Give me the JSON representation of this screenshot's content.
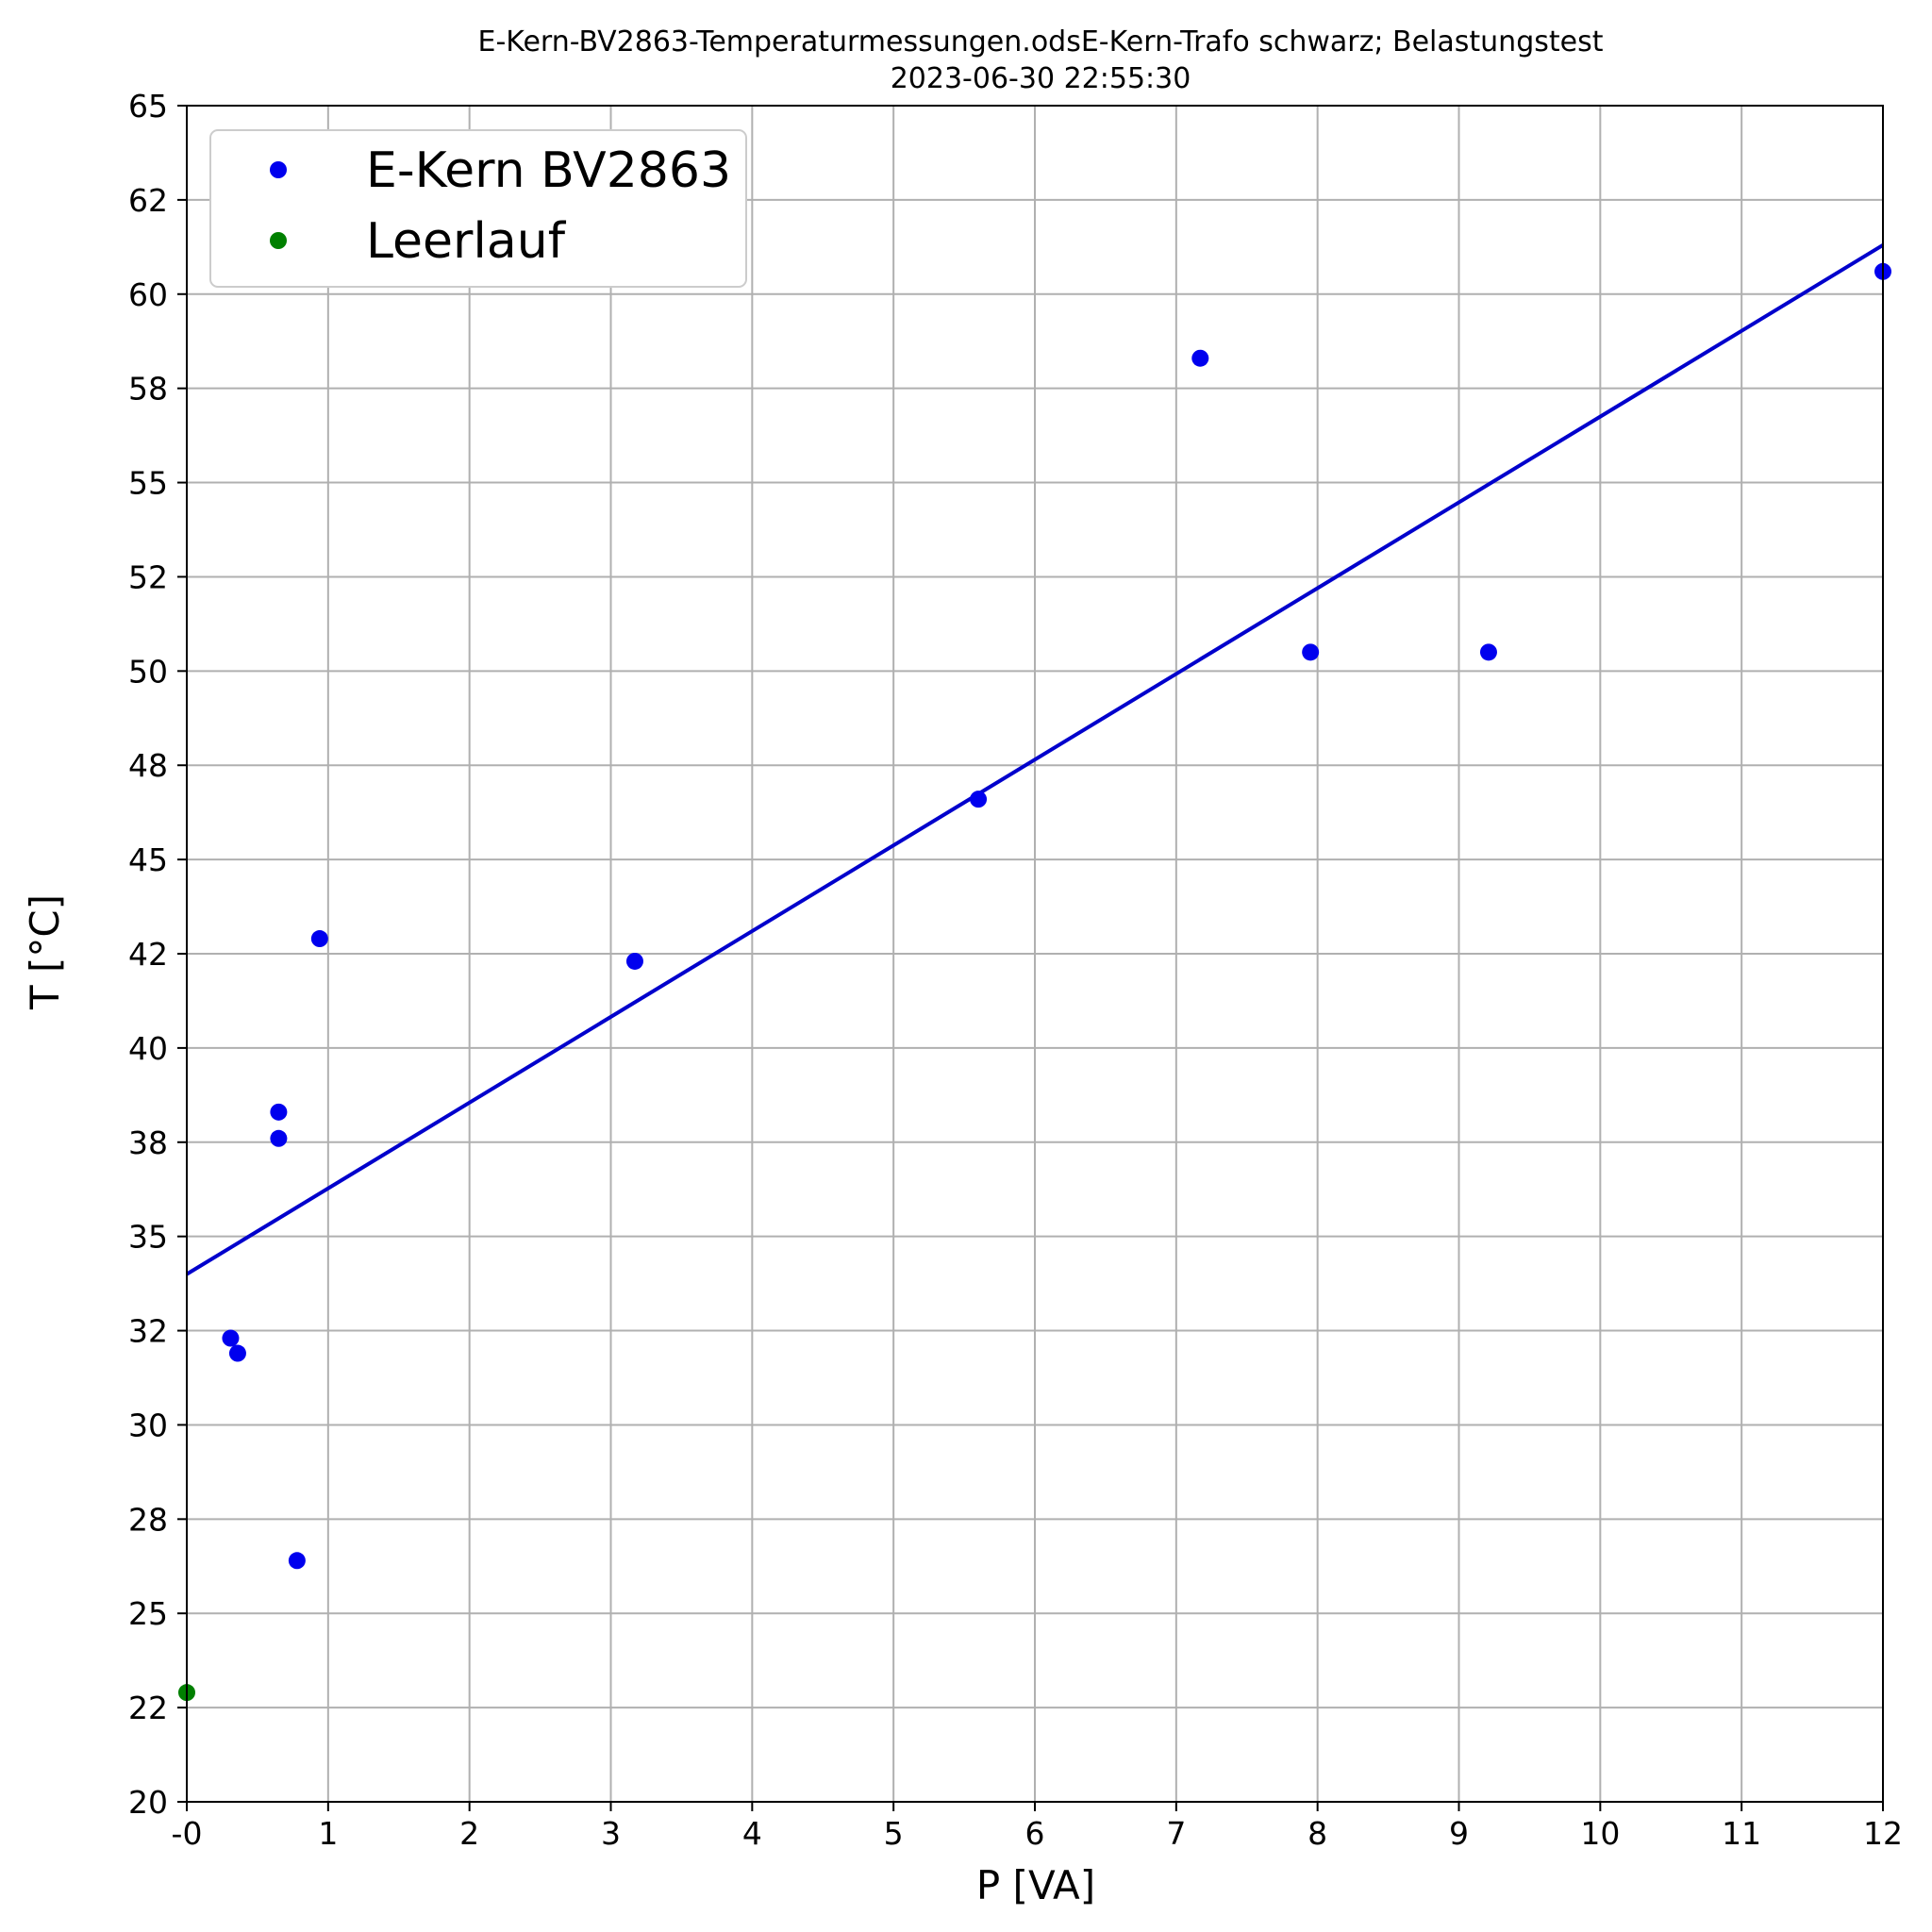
{
  "chart_data": {
    "type": "scatter",
    "title": "E-Kern-BV2863-Temperaturmessungen.odsE-Kern-Trafo schwarz; Belastungstest",
    "subtitle": "2023-06-30 22:55:30",
    "xlabel": "P [VA]",
    "ylabel": "T [°C]",
    "xlim": [
      0,
      12
    ],
    "ylim": [
      20,
      65
    ],
    "grid": true,
    "legend_position": "top-left",
    "x_ticks": [
      {
        "value": 0,
        "label": "-0"
      },
      {
        "value": 1,
        "label": "1"
      },
      {
        "value": 2,
        "label": "2"
      },
      {
        "value": 3,
        "label": "3"
      },
      {
        "value": 4,
        "label": "4"
      },
      {
        "value": 5,
        "label": "5"
      },
      {
        "value": 6,
        "label": "6"
      },
      {
        "value": 7,
        "label": "7"
      },
      {
        "value": 8,
        "label": "8"
      },
      {
        "value": 9,
        "label": "9"
      },
      {
        "value": 10,
        "label": "10"
      },
      {
        "value": 11,
        "label": "11"
      },
      {
        "value": 12,
        "label": "12"
      }
    ],
    "y_ticks": [
      {
        "value": 20,
        "label": "20"
      },
      {
        "value": 22.5,
        "label": "22"
      },
      {
        "value": 25,
        "label": "25"
      },
      {
        "value": 27.5,
        "label": "28"
      },
      {
        "value": 30,
        "label": "30"
      },
      {
        "value": 32.5,
        "label": "32"
      },
      {
        "value": 35,
        "label": "35"
      },
      {
        "value": 37.5,
        "label": "38"
      },
      {
        "value": 40,
        "label": "40"
      },
      {
        "value": 42.5,
        "label": "42"
      },
      {
        "value": 45,
        "label": "45"
      },
      {
        "value": 47.5,
        "label": "48"
      },
      {
        "value": 50,
        "label": "50"
      },
      {
        "value": 52.5,
        "label": "52"
      },
      {
        "value": 55,
        "label": "55"
      },
      {
        "value": 57.5,
        "label": "58"
      },
      {
        "value": 60,
        "label": "60"
      },
      {
        "value": 62.5,
        "label": "62"
      },
      {
        "value": 65,
        "label": "65"
      }
    ],
    "series": [
      {
        "name": "E-Kern BV2863",
        "color": "#0000ee",
        "points": [
          {
            "x": 0.31,
            "y": 32.3
          },
          {
            "x": 0.36,
            "y": 31.9
          },
          {
            "x": 0.65,
            "y": 38.3
          },
          {
            "x": 0.65,
            "y": 37.6
          },
          {
            "x": 0.78,
            "y": 26.4
          },
          {
            "x": 0.94,
            "y": 42.9
          },
          {
            "x": 3.17,
            "y": 42.3
          },
          {
            "x": 5.6,
            "y": 46.6
          },
          {
            "x": 7.17,
            "y": 58.3
          },
          {
            "x": 7.95,
            "y": 50.5
          },
          {
            "x": 9.21,
            "y": 50.5
          },
          {
            "x": 12.0,
            "y": 60.6
          }
        ]
      },
      {
        "name": "Leerlauf",
        "color": "#008000",
        "points": [
          {
            "x": 0.0,
            "y": 22.9
          }
        ]
      }
    ],
    "fit_line": {
      "color": "#0000cc",
      "points": [
        {
          "x": 0,
          "y": 34.0
        },
        {
          "x": 12,
          "y": 61.3
        }
      ]
    }
  }
}
